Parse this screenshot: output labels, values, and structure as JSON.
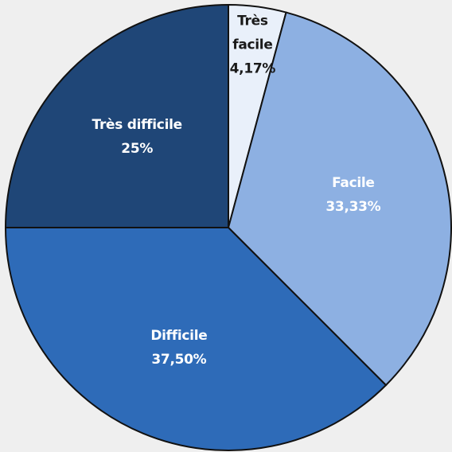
{
  "chart_data": {
    "type": "pie",
    "slices": [
      {
        "name": "Très facile",
        "label_lines": [
          "Très",
          "facile"
        ],
        "value": 4.17,
        "value_label": "4,17%",
        "color": "#e9f0fa",
        "text_color": "#1a1a1a"
      },
      {
        "name": "Facile",
        "label_lines": [
          "Facile"
        ],
        "value": 33.33,
        "value_label": "33,33%",
        "color": "#8db0e2",
        "text_color": "#ffffff"
      },
      {
        "name": "Difficile",
        "label_lines": [
          "Difficile"
        ],
        "value": 37.5,
        "value_label": "37,50%",
        "color": "#2e6bb8",
        "text_color": "#ffffff"
      },
      {
        "name": "Très difficile",
        "label_lines": [
          "Très difficile"
        ],
        "value": 25,
        "value_label": "25%",
        "color": "#1f4677",
        "text_color": "#ffffff"
      }
    ],
    "start_angle": "12 o'clock",
    "direction": "clockwise",
    "legend": "none"
  }
}
